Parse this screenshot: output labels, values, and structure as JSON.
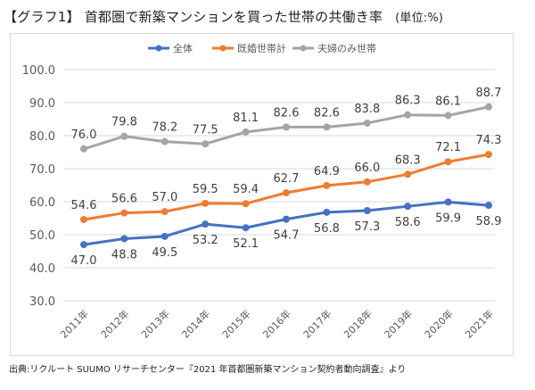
{
  "title": "【グラフ1】 首都圏で新築マンションを買った世帯の共働き率",
  "unit": "(単位:%)",
  "source": "出典:リクルート SUUMO リサーチセンター『2021 年首都圏新築マンション契約者動向調査』より",
  "chart_data": {
    "type": "line",
    "title": "首都圏で新築マンションを買った世帯の共働き率",
    "xlabel": "",
    "ylabel": "(単位:%)",
    "ylim": [
      30,
      100
    ],
    "yticks": [
      "100.0",
      "90.0",
      "80.0",
      "70.0",
      "60.0",
      "50.0",
      "40.0",
      "30.0"
    ],
    "grid": true,
    "legend_position": "top-center",
    "categories": [
      "2011年",
      "2012年",
      "2013年",
      "2014年",
      "2015年",
      "2016年",
      "2017年",
      "2018年",
      "2019年",
      "2020年",
      "2021年"
    ],
    "series": [
      {
        "name": "全体",
        "color": "#4472c4",
        "label_position": "below",
        "values": [
          47.0,
          48.8,
          49.5,
          53.2,
          52.1,
          54.7,
          56.8,
          57.3,
          58.6,
          59.9,
          58.9
        ]
      },
      {
        "name": "既婚世帯計",
        "color": "#ed7d31",
        "label_position": "above",
        "values": [
          54.6,
          56.6,
          57.0,
          59.5,
          59.4,
          62.7,
          64.9,
          66.0,
          68.3,
          72.1,
          74.3
        ]
      },
      {
        "name": "夫婦のみ世帯",
        "color": "#a5a5a5",
        "label_position": "above",
        "values": [
          76.0,
          79.8,
          78.2,
          77.5,
          81.1,
          82.6,
          82.6,
          83.8,
          86.3,
          86.1,
          88.7
        ]
      }
    ]
  }
}
